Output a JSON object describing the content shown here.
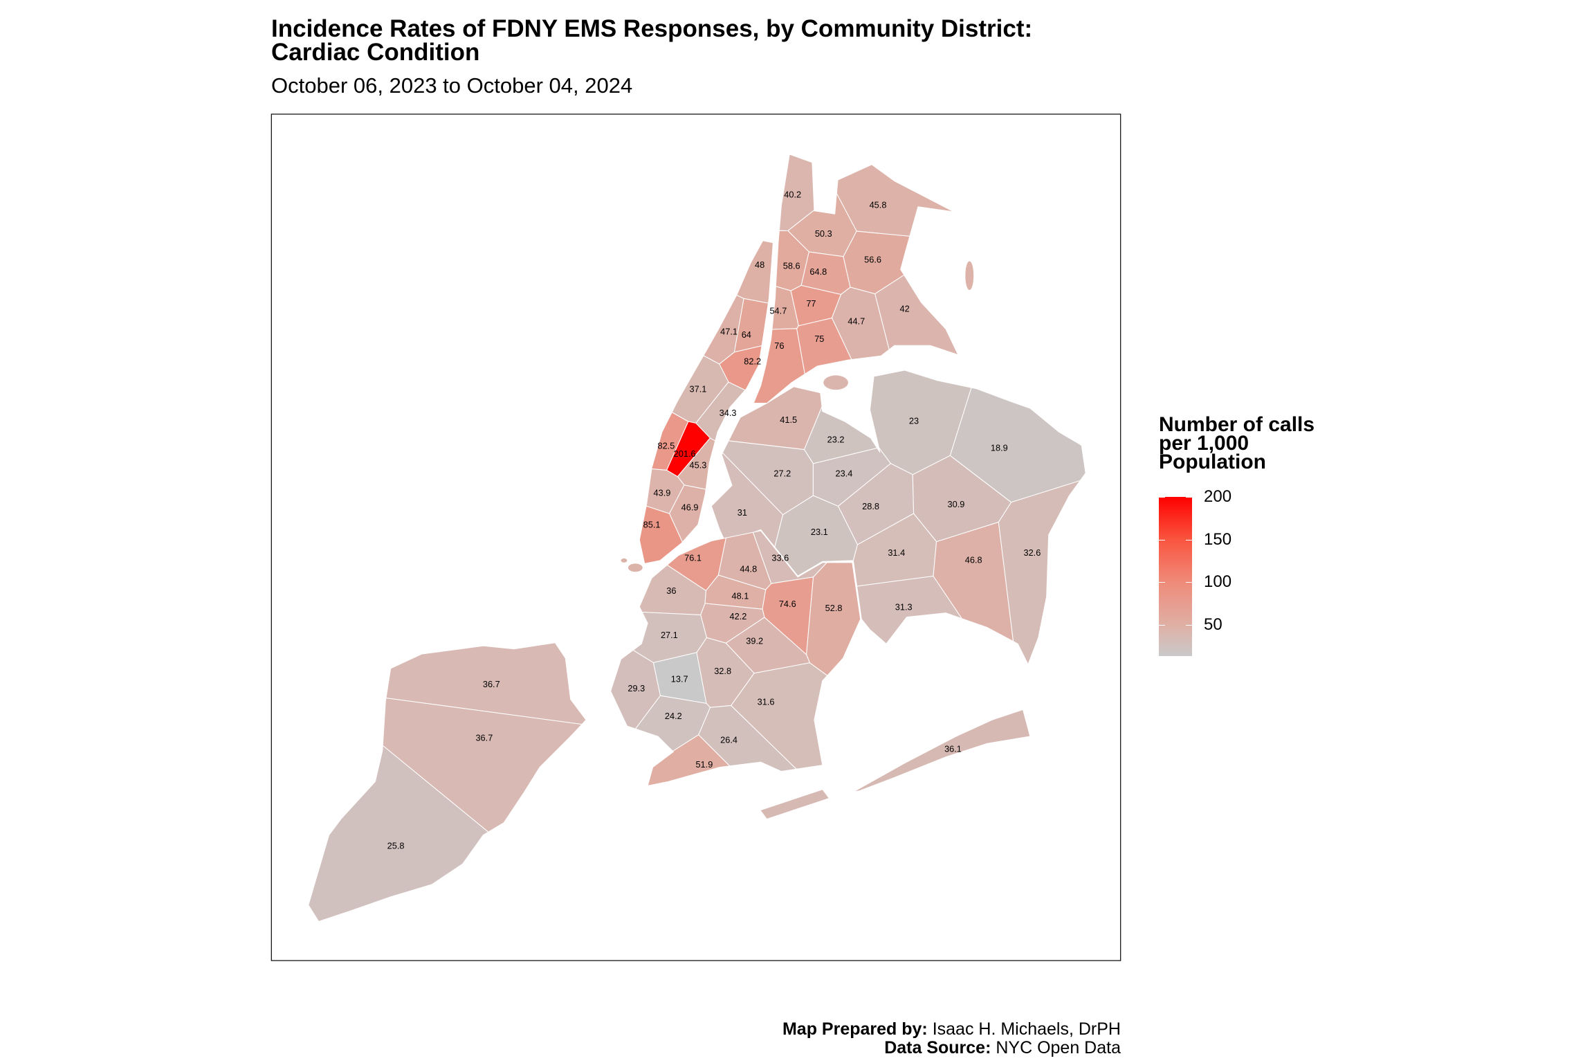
{
  "chart_data": {
    "type": "choropleth",
    "title": "Incidence Rates of FDNY EMS Responses, by Community District:",
    "title_line2": "Cardiac Condition",
    "subtitle": "October 06, 2023 to October 04, 2024",
    "legend": {
      "title_lines": [
        "Number of calls",
        "per 1,000",
        "Population"
      ],
      "ticks": [
        50,
        100,
        150,
        200
      ],
      "tick_labels": [
        "50",
        "100",
        "150",
        "200"
      ],
      "range": [
        13.7,
        201.6
      ],
      "low_color": "#C9C9C9",
      "high_color": "#FF0000",
      "placement": "right"
    },
    "districts": [
      {
        "value": 40.2,
        "label": "40.2"
      },
      {
        "value": 45.8,
        "label": "45.8"
      },
      {
        "value": 50.3,
        "label": "50.3"
      },
      {
        "value": 58.6,
        "label": "58.6"
      },
      {
        "value": 64.8,
        "label": "64.8"
      },
      {
        "value": 56.6,
        "label": "56.6"
      },
      {
        "value": 54.7,
        "label": "54.7"
      },
      {
        "value": 77,
        "label": "77"
      },
      {
        "value": 44.7,
        "label": "44.7"
      },
      {
        "value": 42,
        "label": "42"
      },
      {
        "value": 76,
        "label": "76"
      },
      {
        "value": 75,
        "label": "75"
      },
      {
        "value": 48,
        "label": "48"
      },
      {
        "value": 47.1,
        "label": "47.1"
      },
      {
        "value": 64,
        "label": "64"
      },
      {
        "value": 82.2,
        "label": "82.2"
      },
      {
        "value": 37.1,
        "label": "37.1"
      },
      {
        "value": 34.3,
        "label": "34.3"
      },
      {
        "value": 82.5,
        "label": "82.5"
      },
      {
        "value": 201.6,
        "label": "201.6"
      },
      {
        "value": 45.3,
        "label": "45.3"
      },
      {
        "value": 43.9,
        "label": "43.9"
      },
      {
        "value": 46.9,
        "label": "46.9"
      },
      {
        "value": 85.1,
        "label": "85.1"
      },
      {
        "value": 41.5,
        "label": "41.5"
      },
      {
        "value": 23,
        "label": "23"
      },
      {
        "value": 23.2,
        "label": "23.2"
      },
      {
        "value": 18.9,
        "label": "18.9"
      },
      {
        "value": 27.2,
        "label": "27.2"
      },
      {
        "value": 23.4,
        "label": "23.4"
      },
      {
        "value": 31,
        "label": "31"
      },
      {
        "value": 28.8,
        "label": "28.8"
      },
      {
        "value": 30.9,
        "label": "30.9"
      },
      {
        "value": 23.1,
        "label": "23.1"
      },
      {
        "value": 31.4,
        "label": "31.4"
      },
      {
        "value": 46.8,
        "label": "46.8"
      },
      {
        "value": 32.6,
        "label": "32.6"
      },
      {
        "value": 31.3,
        "label": "31.3"
      },
      {
        "value": 76.1,
        "label": "76.1"
      },
      {
        "value": 44.8,
        "label": "44.8"
      },
      {
        "value": 33.6,
        "label": "33.6"
      },
      {
        "value": 36,
        "label": "36"
      },
      {
        "value": 48.1,
        "label": "48.1"
      },
      {
        "value": 74.6,
        "label": "74.6"
      },
      {
        "value": 52.8,
        "label": "52.8"
      },
      {
        "value": 42.2,
        "label": "42.2"
      },
      {
        "value": 27.1,
        "label": "27.1"
      },
      {
        "value": 39.2,
        "label": "39.2"
      },
      {
        "value": 13.7,
        "label": "13.7"
      },
      {
        "value": 32.8,
        "label": "32.8"
      },
      {
        "value": 29.3,
        "label": "29.3"
      },
      {
        "value": 31.6,
        "label": "31.6"
      },
      {
        "value": 24.2,
        "label": "24.2"
      },
      {
        "value": 26.4,
        "label": "26.4"
      },
      {
        "value": 51.9,
        "label": "51.9"
      },
      {
        "value": 36.1,
        "label": "36.1"
      },
      {
        "value": 36.7,
        "label": "36.7"
      },
      {
        "value": 36.7,
        "label": "36.7"
      },
      {
        "value": 25.8,
        "label": "25.8"
      }
    ]
  },
  "footer": {
    "prepared_label": "Map Prepared by:",
    "prepared_value": " Isaac H. Michaels, DrPH",
    "source_label": "Data Source:",
    "source_value": " NYC Open Data"
  }
}
